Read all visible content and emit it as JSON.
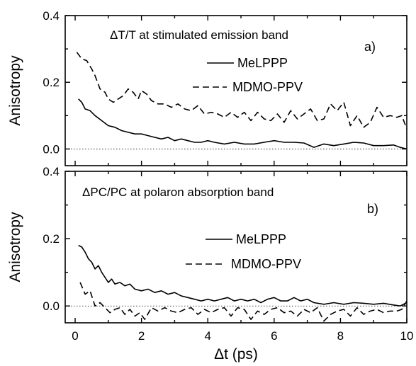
{
  "chart_data": [
    {
      "type": "line",
      "panel_label": "a)",
      "annotation": "ΔT/T at stimulated emission band",
      "xlabel": "Δt (ps)",
      "ylabel": "Anisotropy",
      "xlim": [
        -0.3,
        10
      ],
      "ylim": [
        -0.05,
        0.4
      ],
      "xticks": [
        "0",
        "2",
        "4",
        "6",
        "8",
        "10"
      ],
      "yticks": [
        "0.0",
        "0.2",
        "0.4"
      ],
      "yticks_values": [
        0.0,
        0.2,
        0.4
      ],
      "zero_line": true,
      "legend_position": "upper-right",
      "series": [
        {
          "name": "MeLPPP",
          "style": "solid",
          "x": [
            0.1,
            0.2,
            0.3,
            0.45,
            0.6,
            0.8,
            1.0,
            1.2,
            1.4,
            1.6,
            1.8,
            2.0,
            2.2,
            2.4,
            2.6,
            2.8,
            3.0,
            3.2,
            3.4,
            3.6,
            3.8,
            4.0,
            4.2,
            4.5,
            4.8,
            5.1,
            5.4,
            5.7,
            6.0,
            6.3,
            6.6,
            6.9,
            7.2,
            7.5,
            7.8,
            8.1,
            8.4,
            8.7,
            9.0,
            9.3,
            9.6,
            9.8,
            10.0
          ],
          "values": [
            0.15,
            0.14,
            0.12,
            0.115,
            0.1,
            0.085,
            0.07,
            0.065,
            0.055,
            0.05,
            0.045,
            0.045,
            0.04,
            0.035,
            0.03,
            0.035,
            0.025,
            0.03,
            0.025,
            0.02,
            0.02,
            0.025,
            0.02,
            0.015,
            0.02,
            0.015,
            0.015,
            0.02,
            0.025,
            0.02,
            0.02,
            0.018,
            0.005,
            0.015,
            0.01,
            0.015,
            0.02,
            0.018,
            0.01,
            0.01,
            0.012,
            0.005,
            0.0
          ]
        },
        {
          "name": "MDMO-PPV",
          "style": "dashed",
          "x": [
            0.05,
            0.2,
            0.35,
            0.5,
            0.6,
            0.75,
            0.9,
            1.0,
            1.15,
            1.3,
            1.45,
            1.6,
            1.75,
            1.9,
            2.0,
            2.15,
            2.3,
            2.5,
            2.7,
            2.9,
            3.1,
            3.3,
            3.5,
            3.7,
            3.9,
            4.1,
            4.3,
            4.5,
            4.7,
            4.9,
            5.1,
            5.3,
            5.5,
            5.7,
            5.9,
            6.1,
            6.3,
            6.5,
            6.7,
            6.9,
            7.1,
            7.3,
            7.5,
            7.7,
            7.9,
            8.1,
            8.3,
            8.5,
            8.7,
            8.9,
            9.1,
            9.3,
            9.5,
            9.7,
            9.85,
            10.0
          ],
          "values": [
            0.29,
            0.27,
            0.265,
            0.24,
            0.22,
            0.18,
            0.17,
            0.15,
            0.14,
            0.15,
            0.16,
            0.18,
            0.17,
            0.15,
            0.175,
            0.165,
            0.145,
            0.135,
            0.135,
            0.125,
            0.135,
            0.12,
            0.115,
            0.13,
            0.105,
            0.11,
            0.105,
            0.095,
            0.11,
            0.095,
            0.11,
            0.085,
            0.11,
            0.09,
            0.085,
            0.105,
            0.08,
            0.115,
            0.09,
            0.105,
            0.12,
            0.085,
            0.09,
            0.135,
            0.115,
            0.14,
            0.07,
            0.1,
            0.065,
            0.08,
            0.125,
            0.095,
            0.1,
            0.095,
            0.1,
            0.06
          ]
        }
      ]
    },
    {
      "type": "line",
      "panel_label": "b)",
      "annotation": "ΔPC/PC at polaron absorption band",
      "xlabel": "Δt (ps)",
      "ylabel": "Anisotropy",
      "xlim": [
        -0.3,
        10
      ],
      "ylim": [
        -0.05,
        0.4
      ],
      "xticks": [
        "0",
        "2",
        "4",
        "6",
        "8",
        "10"
      ],
      "xticks_values": [
        0,
        2,
        4,
        6,
        8,
        10
      ],
      "yticks": [
        "0.0",
        "0.2",
        "0.4"
      ],
      "yticks_values": [
        0.0,
        0.2,
        0.4
      ],
      "zero_line": true,
      "legend_position": "right",
      "series": [
        {
          "name": "MeLPPP",
          "style": "solid",
          "x": [
            0.1,
            0.2,
            0.3,
            0.4,
            0.5,
            0.6,
            0.7,
            0.8,
            0.9,
            1.0,
            1.1,
            1.2,
            1.35,
            1.5,
            1.65,
            1.8,
            2.0,
            2.2,
            2.4,
            2.6,
            2.8,
            3.0,
            3.2,
            3.4,
            3.6,
            3.8,
            4.0,
            4.2,
            4.4,
            4.6,
            4.8,
            5.0,
            5.2,
            5.4,
            5.6,
            5.8,
            6.0,
            6.2,
            6.4,
            6.6,
            6.8,
            7.0,
            7.2,
            7.5,
            7.8,
            8.1,
            8.4,
            8.7,
            9.0,
            9.3,
            9.6,
            9.8,
            10.0
          ],
          "values": [
            0.18,
            0.175,
            0.16,
            0.14,
            0.13,
            0.11,
            0.12,
            0.1,
            0.085,
            0.07,
            0.08,
            0.065,
            0.07,
            0.06,
            0.065,
            0.05,
            0.045,
            0.05,
            0.04,
            0.045,
            0.035,
            0.04,
            0.03,
            0.025,
            0.02,
            0.015,
            0.02,
            0.015,
            0.02,
            0.025,
            0.015,
            0.02,
            0.015,
            0.02,
            0.01,
            0.02,
            0.025,
            0.015,
            0.015,
            0.025,
            0.015,
            0.02,
            0.01,
            0.005,
            0.01,
            0.005,
            0.01,
            0.008,
            0.005,
            0.008,
            0.003,
            0.0,
            0.01
          ]
        },
        {
          "name": "MDMO-PPV",
          "style": "dashed",
          "x": [
            0.15,
            0.3,
            0.45,
            0.6,
            0.75,
            0.9,
            1.05,
            1.2,
            1.35,
            1.5,
            1.65,
            1.8,
            1.95,
            2.1,
            2.3,
            2.5,
            2.7,
            2.9,
            3.1,
            3.3,
            3.5,
            3.7,
            3.9,
            4.1,
            4.3,
            4.5,
            4.7,
            4.9,
            5.1,
            5.3,
            5.5,
            5.7,
            5.9,
            6.1,
            6.3,
            6.5,
            6.7,
            6.9,
            7.1,
            7.3,
            7.5,
            7.7,
            7.9,
            8.1,
            8.3,
            8.5,
            8.7,
            8.9,
            9.1,
            9.3,
            9.5,
            9.7,
            9.85,
            10.0
          ],
          "values": [
            0.07,
            0.035,
            0.045,
            0.0,
            0.01,
            -0.005,
            -0.02,
            -0.01,
            -0.005,
            -0.025,
            -0.01,
            -0.03,
            -0.02,
            -0.04,
            -0.005,
            -0.015,
            -0.005,
            -0.015,
            -0.02,
            -0.01,
            -0.005,
            -0.025,
            -0.01,
            -0.02,
            -0.01,
            -0.005,
            -0.03,
            -0.005,
            -0.01,
            -0.04,
            -0.015,
            -0.025,
            -0.01,
            -0.005,
            -0.02,
            -0.015,
            -0.03,
            -0.01,
            -0.02,
            -0.005,
            -0.045,
            -0.025,
            -0.015,
            -0.01,
            -0.03,
            -0.005,
            -0.025,
            -0.015,
            -0.01,
            -0.02,
            -0.015,
            -0.015,
            -0.01,
            0.015
          ]
        }
      ]
    }
  ]
}
